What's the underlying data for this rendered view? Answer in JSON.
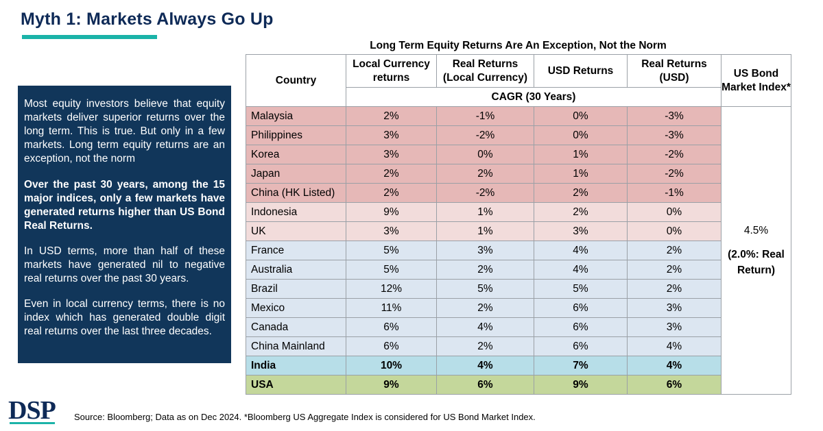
{
  "title": "Myth 1: Markets Always Go Up",
  "sidebar": {
    "para1": "Most equity investors believe that equity markets deliver superior returns over the long term. This is true. But only in a few markets. Long term equity returns are an exception, not the norm",
    "para2": "Over the past 30 years, among the 15 major indices, only a few markets have generated returns higher than US Bond Real Returns.",
    "para3": "In USD terms, more than half of these markets have generated nil to negative real returns over the past 30 years.",
    "para4": "Even in local currency terms, there is no index which has generated double digit real returns over the last three decades."
  },
  "colors": {
    "red": "#e6b8b7",
    "pink": "#f2dcdb",
    "blue": "#dce6f1",
    "india": "#b7dee8",
    "usa": "#c4d79b",
    "panel": "#11365a",
    "title": "#0e2a57",
    "accent": "#1bb3a8"
  },
  "chart_data": {
    "type": "table",
    "title": "Long Term Equity Returns Are An Exception, Not the Norm",
    "columns": {
      "country": "Country",
      "local": "Local Currency returns",
      "real_local": "Real Returns (Local Currency)",
      "usd": "USD Returns",
      "real_usd": "Real Returns (USD)",
      "bond": "US Bond Market Index*"
    },
    "subheader": "CAGR (30 Years)",
    "rows": [
      {
        "country": "Malaysia",
        "local": "2%",
        "real_local": "-1%",
        "usd": "0%",
        "real_usd": "-3%",
        "group": "red"
      },
      {
        "country": "Philippines",
        "local": "3%",
        "real_local": "-2%",
        "usd": "0%",
        "real_usd": "-3%",
        "group": "red"
      },
      {
        "country": "Korea",
        "local": "3%",
        "real_local": "0%",
        "usd": "1%",
        "real_usd": "-2%",
        "group": "red"
      },
      {
        "country": "Japan",
        "local": "2%",
        "real_local": "2%",
        "usd": "1%",
        "real_usd": "-2%",
        "group": "red"
      },
      {
        "country": "China (HK Listed)",
        "local": "2%",
        "real_local": "-2%",
        "usd": "2%",
        "real_usd": "-1%",
        "group": "red"
      },
      {
        "country": "Indonesia",
        "local": "9%",
        "real_local": "1%",
        "usd": "2%",
        "real_usd": "0%",
        "group": "pink"
      },
      {
        "country": "UK",
        "local": "3%",
        "real_local": "1%",
        "usd": "3%",
        "real_usd": "0%",
        "group": "pink"
      },
      {
        "country": "France",
        "local": "5%",
        "real_local": "3%",
        "usd": "4%",
        "real_usd": "2%",
        "group": "blue"
      },
      {
        "country": "Australia",
        "local": "5%",
        "real_local": "2%",
        "usd": "4%",
        "real_usd": "2%",
        "group": "blue"
      },
      {
        "country": "Brazil",
        "local": "12%",
        "real_local": "5%",
        "usd": "5%",
        "real_usd": "2%",
        "group": "blue"
      },
      {
        "country": "Mexico",
        "local": "11%",
        "real_local": "2%",
        "usd": "6%",
        "real_usd": "3%",
        "group": "blue"
      },
      {
        "country": "Canada",
        "local": "6%",
        "real_local": "4%",
        "usd": "6%",
        "real_usd": "3%",
        "group": "blue"
      },
      {
        "country": "China Mainland",
        "local": "6%",
        "real_local": "2%",
        "usd": "6%",
        "real_usd": "4%",
        "group": "blue"
      },
      {
        "country": "India",
        "local": "10%",
        "real_local": "4%",
        "usd": "7%",
        "real_usd": "4%",
        "group": "india"
      },
      {
        "country": "USA",
        "local": "9%",
        "real_local": "6%",
        "usd": "9%",
        "real_usd": "6%",
        "group": "usa"
      }
    ],
    "bond_value": "4.5%",
    "bond_real": "(2.0%: Real Return)"
  },
  "logo": "DSP",
  "source": "Source: Bloomberg; Data as on Dec 2024. *Bloomberg US Aggregate Index is considered for US Bond Market Index."
}
